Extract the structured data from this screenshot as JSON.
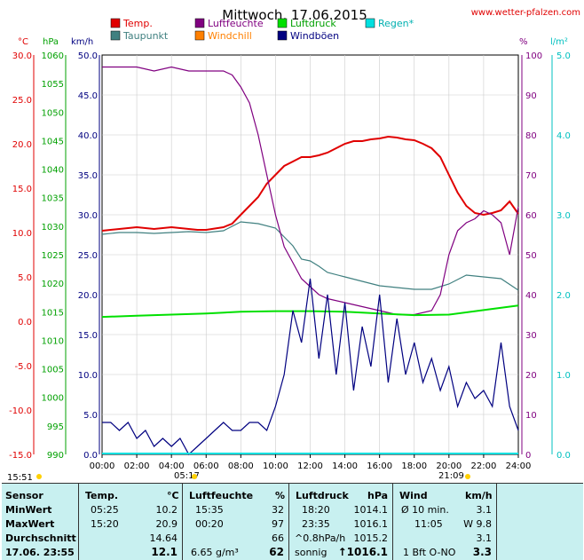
{
  "header": {
    "title": "Mittwoch, 17.06.2015",
    "site": "www.wetter-pfalzen.com"
  },
  "units": {
    "temp": "°C",
    "press": "hPa",
    "wind": "km/h",
    "hum": "%",
    "rain": "l/m²"
  },
  "legend": [
    {
      "label": "Temp.",
      "color": "#e00000"
    },
    {
      "label": "Luftfeuchte",
      "color": "#800080"
    },
    {
      "label": "Luftdruck",
      "color": "#00e000"
    },
    {
      "label": "Regen*",
      "color": "#00e0e0"
    },
    {
      "label": "Taupunkt",
      "color": "#408080"
    },
    {
      "label": "Windchill",
      "color": "#ff8000"
    },
    {
      "label": "Windböen",
      "color": "#000080"
    }
  ],
  "axes": {
    "temp_ticks": [
      "30.0",
      "25.0",
      "20.0",
      "15.0",
      "10.0",
      "5.0",
      "0.0",
      "-5.0",
      "-10.0",
      "-15.0"
    ],
    "press_ticks": [
      "1060",
      "1055",
      "1050",
      "1045",
      "1040",
      "1035",
      "1030",
      "1025",
      "1020",
      "1015",
      "1010",
      "1005",
      "1000",
      "995",
      "990"
    ],
    "wind_ticks": [
      "50.0",
      "45.0",
      "40.0",
      "35.0",
      "30.0",
      "25.0",
      "20.0",
      "15.0",
      "10.0",
      "5.0",
      "0.0"
    ],
    "hum_ticks": [
      "100",
      "90",
      "80",
      "70",
      "60",
      "50",
      "40",
      "30",
      "20",
      "10",
      "0"
    ],
    "rain_ticks": [
      "5.0",
      "4.0",
      "3.0",
      "2.0",
      "1.0",
      "0.0"
    ],
    "time_ticks": [
      "00:00",
      "02:00",
      "04:00",
      "06:00",
      "08:00",
      "10:00",
      "12:00",
      "14:00",
      "16:00",
      "18:00",
      "20:00",
      "22:00",
      "24:00"
    ],
    "sunrise": "05:17",
    "sunset": "21:09",
    "moonrise": "15:51"
  },
  "chart_data": {
    "type": "line",
    "x_unit": "hours",
    "xlim": [
      0,
      24
    ],
    "series": [
      {
        "name": "Temp.",
        "axis": "°C",
        "ylim": [
          -15,
          30
        ],
        "color": "#e00000",
        "x": [
          0,
          1,
          2,
          3,
          4,
          5,
          5.5,
          6,
          7,
          7.5,
          8,
          8.5,
          9,
          9.5,
          10,
          10.5,
          11,
          11.5,
          12,
          12.5,
          13,
          13.5,
          14,
          14.5,
          15,
          15.5,
          16,
          16.5,
          17,
          17.5,
          18,
          18.5,
          19,
          19.5,
          20,
          20.5,
          21,
          21.5,
          22,
          22.5,
          23,
          23.5,
          24
        ],
        "y": [
          10.2,
          10.4,
          10.6,
          10.4,
          10.6,
          10.4,
          10.3,
          10.3,
          10.6,
          11.0,
          12.0,
          13.0,
          14.0,
          15.5,
          16.5,
          17.5,
          18.0,
          18.5,
          18.5,
          18.7,
          19.0,
          19.5,
          20.0,
          20.3,
          20.3,
          20.5,
          20.6,
          20.8,
          20.7,
          20.5,
          20.4,
          20.0,
          19.5,
          18.5,
          16.5,
          14.5,
          13.0,
          12.2,
          12.0,
          12.2,
          12.5,
          13.5,
          12.1
        ]
      },
      {
        "name": "Taupunkt",
        "axis": "°C",
        "ylim": [
          -15,
          30
        ],
        "color": "#408080",
        "x": [
          0,
          1,
          2,
          3,
          4,
          5,
          6,
          7,
          8,
          9,
          10,
          10.5,
          11,
          11.5,
          12,
          12.5,
          13,
          14,
          15,
          16,
          17,
          18,
          19,
          20,
          21,
          22,
          23,
          24
        ],
        "y": [
          9.8,
          10.0,
          10.0,
          9.9,
          10.0,
          10.1,
          10.0,
          10.2,
          11.2,
          11.0,
          10.5,
          9.5,
          8.5,
          7.0,
          6.8,
          6.2,
          5.5,
          5.0,
          4.5,
          4.0,
          3.8,
          3.6,
          3.6,
          4.2,
          5.2,
          5.0,
          4.8,
          3.5
        ]
      },
      {
        "name": "Luftfeuchte",
        "axis": "%",
        "ylim": [
          0,
          100
        ],
        "color": "#800080",
        "x": [
          0,
          1,
          2,
          3,
          4,
          5,
          6,
          7,
          7.5,
          8,
          8.5,
          9,
          9.5,
          10,
          10.5,
          11,
          11.5,
          12,
          12.5,
          13,
          14,
          15,
          16,
          17,
          18,
          19,
          19.5,
          20,
          20.5,
          21,
          21.5,
          22,
          22.5,
          23,
          23.5,
          24
        ],
        "y": [
          97,
          97,
          97,
          96,
          97,
          96,
          96,
          96,
          95,
          92,
          88,
          80,
          70,
          60,
          52,
          48,
          44,
          42,
          40,
          39,
          38,
          37,
          36,
          35,
          35,
          36,
          40,
          50,
          56,
          58,
          59,
          61,
          60,
          58,
          50,
          62
        ]
      },
      {
        "name": "Luftdruck",
        "axis": "hPa",
        "ylim": [
          990,
          1060
        ],
        "color": "#00e000",
        "x": [
          0,
          2,
          4,
          6,
          8,
          10,
          12,
          14,
          16,
          18,
          20,
          22,
          24
        ],
        "y": [
          1014.1,
          1014.3,
          1014.5,
          1014.7,
          1015.0,
          1015.1,
          1015.1,
          1015.0,
          1014.7,
          1014.4,
          1014.5,
          1015.3,
          1016.1
        ]
      },
      {
        "name": "Windböen",
        "axis": "km/h",
        "ylim": [
          0,
          50
        ],
        "color": "#000080",
        "x": [
          0,
          0.5,
          1,
          1.5,
          2,
          2.5,
          3,
          3.5,
          4,
          4.5,
          5,
          5.5,
          6,
          6.5,
          7,
          7.5,
          8,
          8.5,
          9,
          9.5,
          10,
          10.5,
          11,
          11.5,
          12,
          12.5,
          13,
          13.5,
          14,
          14.5,
          15,
          15.5,
          16,
          16.5,
          17,
          17.5,
          18,
          18.5,
          19,
          19.5,
          20,
          20.5,
          21,
          21.5,
          22,
          22.5,
          23,
          23.5,
          24
        ],
        "y": [
          4,
          4,
          3,
          4,
          2,
          3,
          1,
          2,
          1,
          2,
          0,
          1,
          2,
          3,
          4,
          3,
          3,
          4,
          4,
          3,
          6,
          10,
          18,
          14,
          22,
          12,
          20,
          10,
          19,
          8,
          16,
          11,
          20,
          9,
          17,
          10,
          14,
          9,
          12,
          8,
          11,
          6,
          9,
          7,
          8,
          6,
          14,
          6,
          3
        ]
      }
    ]
  },
  "table": {
    "headers": {
      "sensor": "Sensor",
      "temp": "Temp.",
      "temp_unit": "°C",
      "hum": "Luftfeuchte",
      "hum_unit": "%",
      "press": "Luftdruck",
      "press_unit": "hPa",
      "wind": "Wind",
      "wind_unit": "km/h"
    },
    "rows": [
      {
        "label": "MinWert",
        "t_time": "05:25",
        "t_val": "10.2",
        "h_time": "15:35",
        "h_val": "32",
        "p_time": "18:20",
        "p_val": "1014.1",
        "w_time": "Ø 10 min.",
        "w_val": "3.1"
      },
      {
        "label": "MaxWert",
        "t_time": "15:20",
        "t_val": "20.9",
        "h_time": "00:20",
        "h_val": "97",
        "p_time": "23:35",
        "p_val": "1016.1",
        "w_time": "11:05",
        "w_val": "W 9.8"
      },
      {
        "label": "Durchschnitt",
        "t_time": "",
        "t_val": "14.64",
        "h_time": "",
        "h_val": "66",
        "p_time": "^0.8hPa/h",
        "p_val": "1015.2",
        "w_time": "",
        "w_val": "3.1"
      }
    ],
    "current": {
      "label": "17.06. 23:55",
      "t_val": "12.1",
      "dew": "6.65 g/m³",
      "h_val": "62",
      "p_time": "sonnig",
      "p_val": "↑1016.1",
      "w_time": "1 Bft O-NO",
      "w_val": "3.3"
    }
  }
}
